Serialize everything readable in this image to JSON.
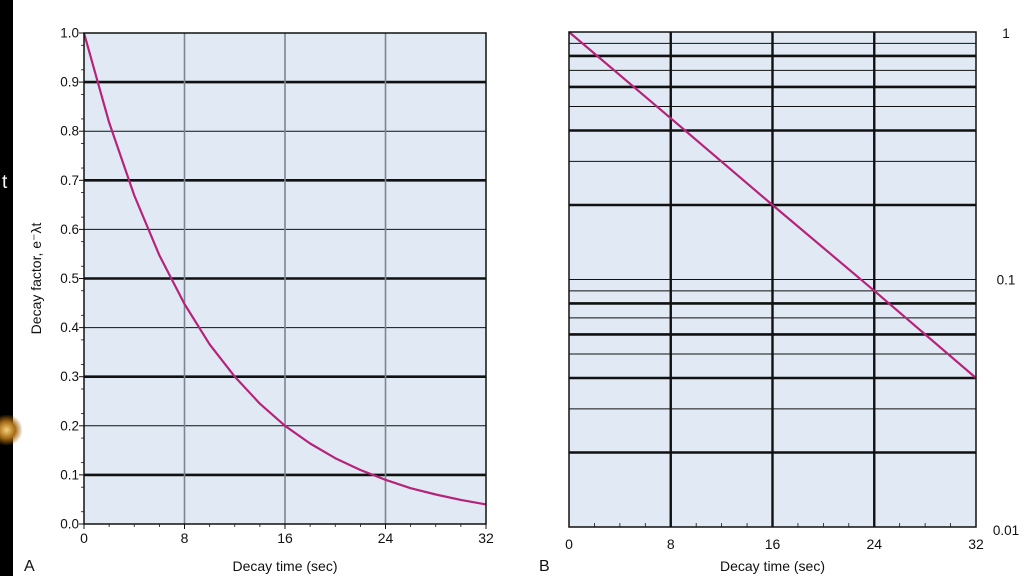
{
  "chart_data": [
    {
      "panel_label": "A",
      "type": "line",
      "scale": "linear",
      "xlabel": "Decay time (sec)",
      "ylabel": "Decay factor, e⁻λt",
      "xlim": [
        0,
        32
      ],
      "ylim": [
        0,
        1.0
      ],
      "x_ticks": [
        "0",
        "8",
        "16",
        "24",
        "32"
      ],
      "y_ticks": [
        "0.0",
        "0.1",
        "0.2",
        "0.3",
        "0.4",
        "0.5",
        "0.6",
        "0.7",
        "0.8",
        "0.9",
        "1.0"
      ],
      "grid": true,
      "series": [
        {
          "color": "#b5237a",
          "x": [
            0,
            2,
            4,
            6,
            8,
            10,
            12,
            14,
            16,
            18,
            20,
            22,
            24,
            26,
            28,
            30,
            32
          ],
          "y": [
            1.0,
            0.818,
            0.669,
            0.547,
            0.448,
            0.366,
            0.3,
            0.245,
            0.2,
            0.164,
            0.134,
            0.11,
            0.09,
            0.073,
            0.06,
            0.049,
            0.04
          ]
        }
      ]
    },
    {
      "panel_label": "B",
      "type": "line",
      "scale": "log",
      "xlabel": "Decay time (sec)",
      "xlim": [
        0,
        32
      ],
      "ylim": [
        0.01,
        1
      ],
      "x_ticks": [
        "0",
        "8",
        "16",
        "24",
        "32"
      ],
      "y_ticks": [
        "1",
        "0.1",
        "0.01"
      ],
      "grid": true,
      "series": [
        {
          "color": "#b5237a",
          "x": [
            0,
            8,
            16,
            24,
            32
          ],
          "y": [
            1.0,
            0.448,
            0.2,
            0.09,
            0.04
          ]
        }
      ]
    }
  ]
}
